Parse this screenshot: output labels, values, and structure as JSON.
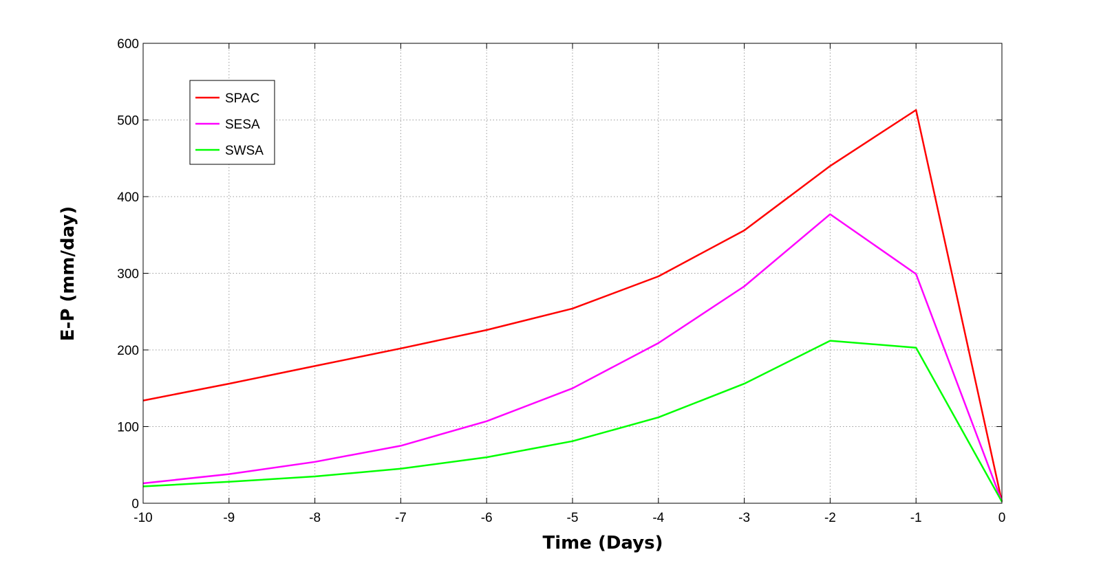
{
  "chart_data": {
    "type": "line",
    "title": "",
    "xlabel": "Time (Days)",
    "ylabel": "E-P (mm/day)",
    "xlim": [
      -10,
      0
    ],
    "ylim": [
      0,
      600
    ],
    "xticks": [
      -10,
      -9,
      -8,
      -7,
      -6,
      -5,
      -4,
      -3,
      -2,
      -1,
      0
    ],
    "yticks": [
      0,
      100,
      200,
      300,
      400,
      500,
      600
    ],
    "grid": true,
    "legend_position": "top-left",
    "x": [
      -10,
      -9,
      -8,
      -7,
      -6,
      -5,
      -4,
      -3,
      -2,
      -1,
      0
    ],
    "series": [
      {
        "name": "SPAC",
        "color": "#ff0000",
        "values": [
          134,
          156,
          179,
          202,
          226,
          254,
          296,
          356,
          440,
          513,
          2
        ]
      },
      {
        "name": "SESA",
        "color": "#ff00ff",
        "values": [
          26,
          38,
          54,
          75,
          107,
          150,
          209,
          283,
          377,
          299,
          2
        ]
      },
      {
        "name": "SWSA",
        "color": "#00ff00",
        "values": [
          22,
          28,
          35,
          45,
          60,
          81,
          112,
          156,
          212,
          203,
          2
        ]
      }
    ]
  }
}
